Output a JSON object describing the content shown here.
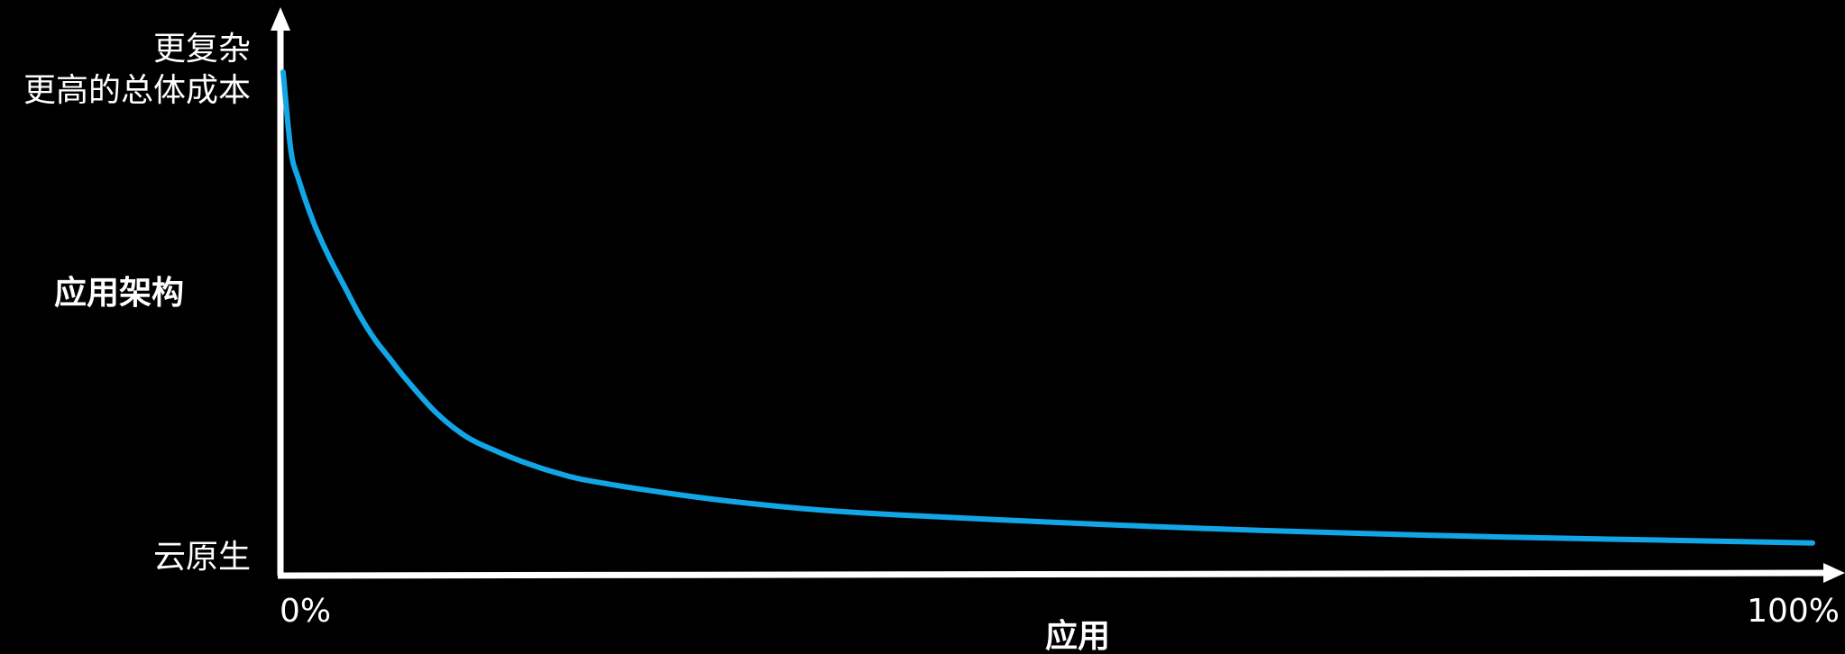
{
  "chart_data": {
    "type": "line",
    "title": "",
    "xlabel": "应用",
    "ylabel": "应用架构",
    "y_top_labels": [
      "更复杂",
      "更高的总体成本"
    ],
    "y_bottom_label": "云原生",
    "x_tick_labels": [
      "0%",
      "100%"
    ],
    "xlim": [
      0,
      100
    ],
    "ylim": [
      0,
      100
    ],
    "grid": false,
    "legend": "none",
    "series": [
      {
        "values_x": [
          0,
          0.5,
          1,
          2,
          3,
          4,
          5,
          6,
          7,
          8,
          10,
          12,
          14,
          16,
          18,
          20,
          25,
          30,
          35,
          40,
          50,
          60,
          70,
          80,
          90,
          100
        ],
        "values_y": [
          100,
          84,
          78,
          69,
          62,
          56,
          50,
          45,
          41,
          37,
          30,
          25,
          22,
          19.5,
          17.5,
          16,
          13.5,
          11.5,
          10,
          9,
          7.5,
          6.2,
          5.2,
          4.4,
          3.8,
          3.2
        ],
        "color": "#13a6e6"
      }
    ],
    "axis_color": "#ffffff"
  }
}
